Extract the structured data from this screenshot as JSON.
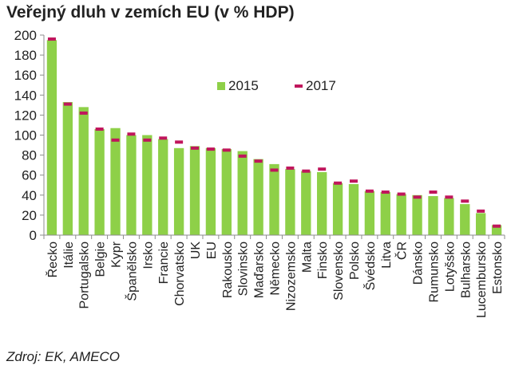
{
  "title": "Veřejný dluh v zemích EU (v % HDP)",
  "source": "Zdroj: EK, AMECO",
  "colors": {
    "bar": "#8ed048",
    "marker": "#c0165c",
    "axis": "#8c8c8c"
  },
  "chart_data": {
    "type": "bar",
    "title": "Veřejný dluh v zemích EU (v % HDP)",
    "xlabel": "",
    "ylabel": "",
    "ylim": [
      0,
      200
    ],
    "yticks": [
      0,
      20,
      40,
      60,
      80,
      100,
      120,
      140,
      160,
      180,
      200
    ],
    "grid": false,
    "legend": "top-right",
    "categories": [
      "Řecko",
      "Itálie",
      "Portugalsko",
      "Belgie",
      "Kypr",
      "Španělsko",
      "Irsko",
      "Francie",
      "Chorvatsko",
      "UK",
      "EU",
      "Rakousko",
      "Slovinsko",
      "Maďarsko",
      "Německo",
      "Nizozemsko",
      "Malta",
      "Finsko",
      "Slovensko",
      "Polsko",
      "Švédsko",
      "Litva",
      "ČR",
      "Dánsko",
      "Rumunsko",
      "Lotyšsko",
      "Bulharsko",
      "Lucembursko",
      "Estonsko"
    ],
    "series": [
      {
        "name": "2015",
        "kind": "bar",
        "values": [
          195,
          133,
          128,
          106,
          107,
          100,
          100,
          96,
          87,
          89,
          87,
          86,
          84,
          76,
          71,
          66,
          64,
          63,
          52,
          51,
          44,
          43,
          41,
          40,
          39,
          37,
          31,
          22,
          10
        ]
      },
      {
        "name": "2017",
        "kind": "marker",
        "values": [
          196,
          131,
          122,
          106,
          95,
          101,
          95,
          97,
          93,
          87,
          86,
          85,
          79,
          74,
          65,
          67,
          64,
          66,
          52,
          54,
          44,
          43,
          41,
          38,
          43,
          38,
          34,
          24,
          9
        ]
      }
    ]
  }
}
